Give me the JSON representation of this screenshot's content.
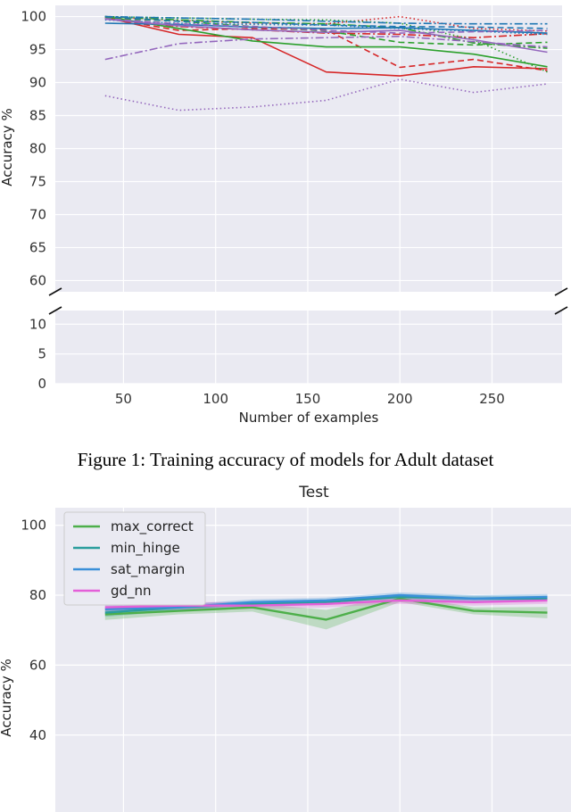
{
  "figure1": {
    "caption": "Figure 1: Training accuracy of models for Adult dataset",
    "chart_data": {
      "type": "line",
      "xlabel": "Number of examples",
      "ylabel": "Accuracy %",
      "xlim": [
        13,
        288
      ],
      "x_ticks": [
        50,
        100,
        150,
        200,
        250
      ],
      "upper_ylim": [
        58.3,
        101.7
      ],
      "upper_y_ticks": [
        60,
        65,
        70,
        75,
        80,
        85,
        90,
        95,
        100
      ],
      "lower_ylim": [
        0,
        12.3
      ],
      "lower_y_ticks": [
        0,
        5,
        10
      ],
      "broken_y_axis": true,
      "grid": true,
      "x": [
        40,
        80,
        120,
        160,
        200,
        240,
        280
      ],
      "series": [
        {
          "color": "#d62728",
          "dash": "solid",
          "values": [
            99.9,
            97.3,
            96.8,
            91.6,
            91.0,
            92.4,
            92.1
          ]
        },
        {
          "color": "#d62728",
          "dash": "dashed",
          "values": [
            99.8,
            97.9,
            98.2,
            98.0,
            92.3,
            93.5,
            91.8
          ]
        },
        {
          "color": "#d62728",
          "dash": "dashdot",
          "values": [
            99.7,
            98.5,
            98.0,
            97.5,
            97.3,
            96.8,
            97.4
          ]
        },
        {
          "color": "#d62728",
          "dash": "dotted",
          "values": [
            100.0,
            99.4,
            99.0,
            98.9,
            100.0,
            98.2,
            97.8
          ]
        },
        {
          "color": "#2ca02c",
          "dash": "solid",
          "values": [
            100.0,
            98.2,
            96.3,
            95.4,
            95.4,
            94.3,
            92.4
          ]
        },
        {
          "color": "#2ca02c",
          "dash": "dashed",
          "values": [
            99.8,
            99.3,
            98.5,
            97.8,
            96.1,
            95.7,
            96.1
          ]
        },
        {
          "color": "#2ca02c",
          "dash": "dashdot",
          "values": [
            100.0,
            99.5,
            99.1,
            98.9,
            98.3,
            96.0,
            95.2
          ]
        },
        {
          "color": "#2ca02c",
          "dash": "dotted",
          "values": [
            100.0,
            99.8,
            99.6,
            99.5,
            99.0,
            96.5,
            91.6
          ]
        },
        {
          "color": "#1f77b4",
          "dash": "solid",
          "values": [
            99.0,
            98.8,
            98.4,
            98.2,
            98.3,
            97.9,
            97.5
          ]
        },
        {
          "color": "#1f77b4",
          "dash": "dashed",
          "values": [
            100.0,
            99.3,
            99.1,
            98.7,
            98.5,
            98.4,
            98.2
          ]
        },
        {
          "color": "#1f77b4",
          "dash": "dashdot",
          "values": [
            100.0,
            99.8,
            99.6,
            99.3,
            99.0,
            98.9,
            98.9
          ]
        },
        {
          "color": "#1f77b4",
          "dash": "dotted",
          "values": [
            99.5,
            99.0,
            98.8,
            98.7,
            98.2,
            97.8,
            97.3
          ]
        },
        {
          "color": "#9467bd",
          "dash": "solid",
          "values": [
            99.6,
            98.6,
            98.0,
            97.6,
            97.9,
            96.5,
            94.6
          ]
        },
        {
          "color": "#9467bd",
          "dash": "dashed",
          "values": [
            99.7,
            98.9,
            98.5,
            97.9,
            97.5,
            97.7,
            97.9
          ]
        },
        {
          "color": "#9467bd",
          "dash": "dashdot",
          "values": [
            93.5,
            95.9,
            96.6,
            96.8,
            97.0,
            96.2,
            95.4
          ]
        },
        {
          "color": "#9467bd",
          "dash": "dotted",
          "values": [
            88.0,
            85.8,
            86.3,
            87.3,
            90.5,
            88.5,
            89.8
          ]
        }
      ]
    }
  },
  "figure2": {
    "title": "Test",
    "chart_data": {
      "type": "line",
      "title": "Test",
      "ylabel": "Accuracy %",
      "xlim": [
        13,
        288
      ],
      "ylim": [
        18,
        105
      ],
      "y_ticks": [
        40,
        60,
        80,
        100
      ],
      "x_gridlines": [
        50,
        100,
        150,
        200,
        250
      ],
      "grid": true,
      "legend_position": "top-left",
      "x": [
        40,
        80,
        120,
        160,
        200,
        240,
        280
      ],
      "series": [
        {
          "name": "max_correct",
          "color": "#4daf4a",
          "values": [
            74.5,
            75.5,
            76.5,
            73.0,
            79.0,
            75.5,
            75.0
          ],
          "band": [
            1.6,
            1.0,
            1.2,
            2.8,
            1.0,
            1.0,
            1.6
          ]
        },
        {
          "name": "min_hinge",
          "color": "#2a9d9d",
          "values": [
            75.0,
            76.5,
            77.5,
            78.0,
            79.5,
            79.0,
            79.0
          ],
          "band": [
            1.2,
            1.0,
            0.8,
            0.8,
            0.8,
            0.8,
            0.8
          ]
        },
        {
          "name": "sat_margin",
          "color": "#3a8fd8",
          "values": [
            76.0,
            76.5,
            78.0,
            78.5,
            80.0,
            79.0,
            79.5
          ],
          "band": [
            1.0,
            0.8,
            0.8,
            0.8,
            0.8,
            1.0,
            0.8
          ]
        },
        {
          "name": "gd_nn",
          "color": "#e45fd8",
          "values": [
            76.5,
            77.0,
            77.0,
            77.5,
            78.5,
            78.0,
            78.5
          ],
          "band": [
            1.0,
            1.0,
            1.0,
            1.0,
            1.0,
            1.0,
            1.0
          ]
        }
      ]
    }
  }
}
